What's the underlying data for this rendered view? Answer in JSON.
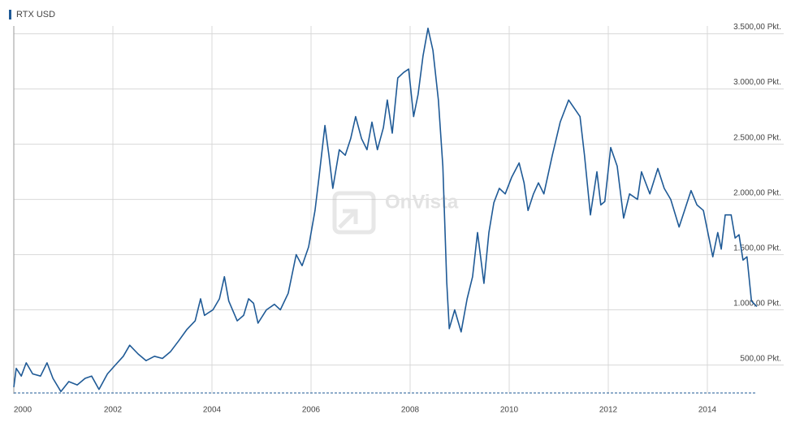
{
  "chart_data": {
    "type": "line",
    "legend": "RTX USD",
    "watermark": "OnVista",
    "color": "#1f5a96",
    "x": [
      2000.0,
      2000.05,
      2000.15,
      2000.25,
      2000.38,
      2000.54,
      2000.67,
      2000.79,
      2000.95,
      2001.11,
      2001.28,
      2001.44,
      2001.57,
      2001.72,
      2001.89,
      2002.05,
      2002.21,
      2002.34,
      2002.51,
      2002.67,
      2002.84,
      2003.0,
      2003.16,
      2003.33,
      2003.49,
      2003.66,
      2003.77,
      2003.85,
      2004.02,
      2004.15,
      2004.25,
      2004.34,
      2004.51,
      2004.64,
      2004.74,
      2004.84,
      2004.93,
      2005.1,
      2005.26,
      2005.38,
      2005.54,
      2005.7,
      2005.82,
      2005.95,
      2006.08,
      2006.16,
      2006.28,
      2006.36,
      2006.44,
      2006.57,
      2006.69,
      2006.8,
      2006.9,
      2007.02,
      2007.13,
      2007.23,
      2007.34,
      2007.46,
      2007.54,
      2007.64,
      2007.75,
      2007.87,
      2007.97,
      2008.07,
      2008.16,
      2008.26,
      2008.36,
      2008.46,
      2008.57,
      2008.66,
      2008.74,
      2008.79,
      2008.9,
      2009.03,
      2009.15,
      2009.26,
      2009.36,
      2009.49,
      2009.59,
      2009.69,
      2009.8,
      2009.92,
      2010.05,
      2010.2,
      2010.3,
      2010.38,
      2010.49,
      2010.59,
      2010.7,
      2010.87,
      2011.03,
      2011.2,
      2011.43,
      2011.52,
      2011.64,
      2011.77,
      2011.85,
      2011.93,
      2012.05,
      2012.18,
      2012.31,
      2012.43,
      2012.59,
      2012.67,
      2012.84,
      2013.0,
      2013.13,
      2013.26,
      2013.43,
      2013.54,
      2013.67,
      2013.79,
      2013.92,
      2014.11,
      2014.21,
      2014.28,
      2014.36,
      2014.48,
      2014.56,
      2014.64,
      2014.72,
      2014.8,
      2014.89,
      2015.0
    ],
    "values": [
      300,
      470,
      400,
      520,
      420,
      400,
      520,
      380,
      260,
      350,
      320,
      380,
      400,
      280,
      420,
      500,
      580,
      680,
      600,
      540,
      580,
      560,
      620,
      720,
      820,
      900,
      1100,
      950,
      1000,
      1100,
      1300,
      1080,
      900,
      950,
      1100,
      1060,
      880,
      1000,
      1050,
      1000,
      1150,
      1500,
      1400,
      1570,
      1900,
      2200,
      2670,
      2400,
      2100,
      2450,
      2400,
      2550,
      2750,
      2550,
      2450,
      2700,
      2450,
      2650,
      2900,
      2600,
      3100,
      3150,
      3180,
      2750,
      2950,
      3300,
      3550,
      3350,
      2900,
      2300,
      1250,
      830,
      1000,
      800,
      1100,
      1300,
      1700,
      1240,
      1700,
      1970,
      2100,
      2050,
      2200,
      2330,
      2150,
      1900,
      2050,
      2150,
      2050,
      2400,
      2700,
      2900,
      2750,
      2400,
      1860,
      2250,
      1950,
      1980,
      2470,
      2300,
      1830,
      2050,
      2000,
      2250,
      2050,
      2280,
      2100,
      2000,
      1750,
      1900,
      2080,
      1950,
      1900,
      1480,
      1700,
      1550,
      1860,
      1860,
      1650,
      1680,
      1450,
      1480,
      1080,
      1030
    ],
    "xlim": [
      2000.0,
      2015.0
    ],
    "xticks": [
      2000,
      2002,
      2004,
      2006,
      2008,
      2010,
      2012,
      2014
    ],
    "ylim": [
      240,
      3600
    ],
    "yticks": [
      {
        "value": 500,
        "label": "500,00 Pkt."
      },
      {
        "value": 1000,
        "label": "1.000,00 Pkt."
      },
      {
        "value": 1500,
        "label": "1.500,00 Pkt."
      },
      {
        "value": 2000,
        "label": "2.000,00 Pkt."
      },
      {
        "value": 2500,
        "label": "2.500,00 Pkt."
      },
      {
        "value": 3000,
        "label": "3.000,00 Pkt."
      },
      {
        "value": 3500,
        "label": "3.500,00 Pkt."
      }
    ],
    "grid": true
  }
}
